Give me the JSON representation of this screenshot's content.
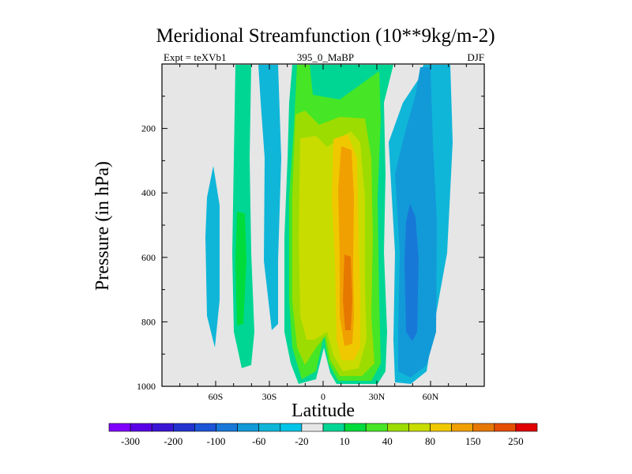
{
  "chart_data": {
    "type": "heatmap",
    "title": "Meridional Streamfunction (10**9kg/m-2)",
    "left_label": "Expt = teXVb1",
    "center_label": "395_0_MaBP",
    "right_label": "DJF",
    "xlabel": "Latitude",
    "ylabel": "Pressure (in hPa)",
    "xlim": [
      -90,
      90
    ],
    "ylim": [
      1000,
      0
    ],
    "x_ticks": [
      {
        "value": -60,
        "label": "60S"
      },
      {
        "value": -30,
        "label": "30S"
      },
      {
        "value": 0,
        "label": "0"
      },
      {
        "value": 30,
        "label": "30N"
      },
      {
        "value": 60,
        "label": "60N"
      }
    ],
    "y_ticks": [
      {
        "value": 200,
        "label": "200"
      },
      {
        "value": 400,
        "label": "400"
      },
      {
        "value": 600,
        "label": "600"
      },
      {
        "value": 800,
        "label": "800"
      },
      {
        "value": 1000,
        "label": "1000"
      }
    ],
    "colorbar": {
      "colors": [
        "#7f00ff",
        "#5a00e6",
        "#3a16d4",
        "#2233d0",
        "#1d55d8",
        "#1878d8",
        "#129ad8",
        "#10b6d8",
        "#00c4e8",
        "#e6e6e6",
        "#00d694",
        "#00dc3c",
        "#46e626",
        "#9cdc00",
        "#c8dc00",
        "#f0c800",
        "#f0a000",
        "#e67800",
        "#e64e00",
        "#e00000"
      ],
      "labels": [
        "-300",
        "-200",
        "-100",
        "-60",
        "-20",
        "10",
        "40",
        "80",
        "150",
        "250"
      ]
    },
    "contour_regions": [
      {
        "name": "nh-ferrel-outer",
        "level": -20,
        "lat_range": [
          33,
          76
        ],
        "pressure_range": [
          25,
          995
        ]
      },
      {
        "name": "nh-ferrel-mid",
        "level": -40,
        "lat_range": [
          34,
          62
        ],
        "pressure_range": [
          80,
          975
        ]
      },
      {
        "name": "nh-ferrel-core",
        "level": -60,
        "lat_range": [
          46,
          56
        ],
        "pressure_range": [
          350,
          880
        ]
      },
      {
        "name": "sh-south-cell",
        "level": -20,
        "lat_range": [
          -68,
          -60
        ],
        "pressure_range": [
          305,
          880
        ]
      },
      {
        "name": "sh-mid-cell",
        "level": -20,
        "lat_range": [
          -47,
          -31
        ],
        "pressure_range": [
          0,
          830
        ]
      },
      {
        "name": "sh-positive-band",
        "level": 10,
        "lat_range": [
          -45,
          -37
        ],
        "pressure_range": [
          0,
          960
        ]
      },
      {
        "name": "tropical-cell",
        "level": 40,
        "lat_range": [
          -10,
          33
        ],
        "pressure_range": [
          0,
          990
        ]
      },
      {
        "name": "tropical-cell-inner",
        "level": 80,
        "lat_range": [
          -8,
          29
        ],
        "pressure_range": [
          150,
          975
        ]
      },
      {
        "name": "tropical-core",
        "level": 150,
        "lat_range": [
          4,
          25
        ],
        "pressure_range": [
          200,
          930
        ]
      },
      {
        "name": "tropical-max",
        "level": 250,
        "lat_range": [
          10,
          18
        ],
        "pressure_range": [
          600,
          845
        ]
      }
    ]
  }
}
